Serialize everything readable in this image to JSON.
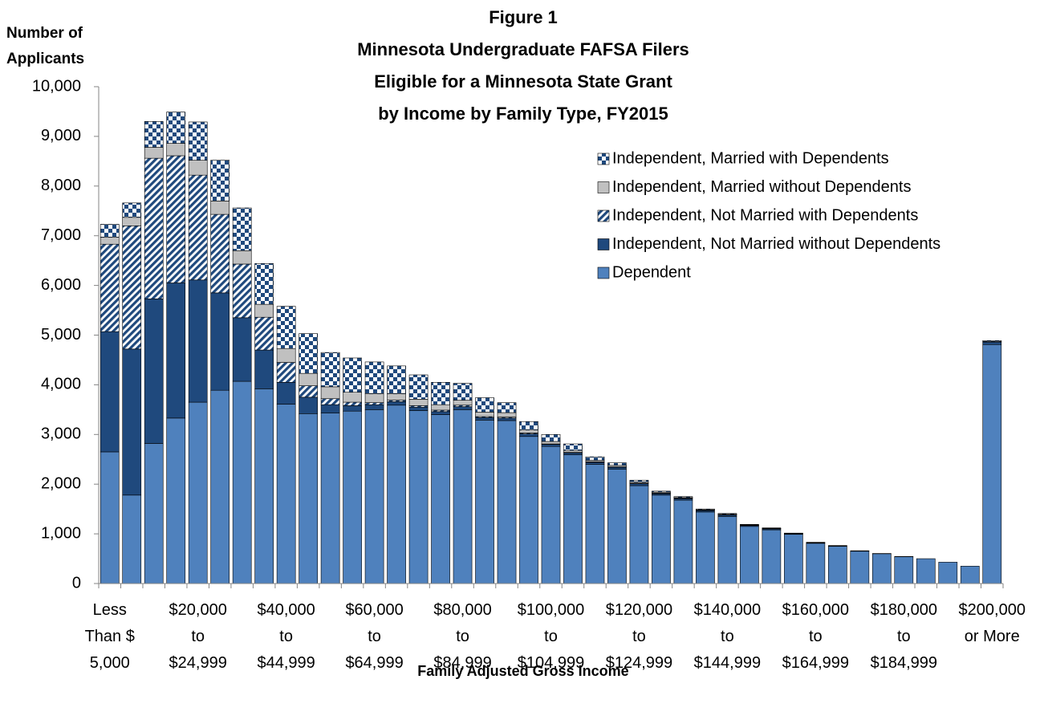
{
  "chart_data": {
    "type": "stacked_bar",
    "title_lines": [
      "Figure 1",
      "Minnesota Undergraduate FAFSA Filers",
      "Eligible for a Minnesota State Grant",
      "by Income by Family Type, FY2015"
    ],
    "ylabel": "Number of\nApplicants",
    "xlabel": "Family Adjusted Gross Income",
    "categories": [
      "Less\nThan $\n5,000",
      null,
      null,
      null,
      "$20,000\nto\n$24,999",
      null,
      null,
      null,
      "$40,000\nto\n$44,999",
      null,
      null,
      null,
      "$60,000\nto\n$64,999",
      null,
      null,
      null,
      "$80,000\nto\n$84,999",
      null,
      null,
      null,
      "$100,000\nto\n$104,999",
      null,
      null,
      null,
      "$120,000\nto\n$124,999",
      null,
      null,
      null,
      "$140,000\nto\n$144,999",
      null,
      null,
      null,
      "$160,000\nto\n$164,999",
      null,
      null,
      null,
      "$180,000\nto\n$184,999",
      null,
      null,
      null,
      "$200,000\nor More"
    ],
    "series": [
      {
        "name": "Dependent",
        "color": "#4f81bd",
        "pattern": "solid",
        "values": [
          2650,
          1780,
          2820,
          3330,
          3650,
          3890,
          4070,
          3920,
          3610,
          3420,
          3430,
          3470,
          3500,
          3590,
          3480,
          3400,
          3500,
          3290,
          3280,
          2960,
          2760,
          2590,
          2400,
          2300,
          1970,
          1780,
          1680,
          1440,
          1350,
          1150,
          1080,
          990,
          810,
          750,
          650,
          600,
          540,
          500,
          430,
          350,
          4810
        ]
      },
      {
        "name": "Independent, Not Married without Dependents",
        "color": "#1f497d",
        "pattern": "solid",
        "values": [
          2420,
          2940,
          2910,
          2720,
          2460,
          1960,
          1280,
          780,
          440,
          330,
          170,
          110,
          100,
          70,
          70,
          60,
          60,
          50,
          50,
          50,
          40,
          40,
          40,
          40,
          40,
          30,
          30,
          30,
          30,
          20,
          20,
          10,
          10,
          10,
          5,
          5,
          5,
          0,
          0,
          0,
          50
        ]
      },
      {
        "name": "Independent, Not Married with Dependents",
        "color": "#1f497d",
        "pattern": "stripes",
        "values": [
          1760,
          2480,
          2830,
          2560,
          2110,
          1580,
          1080,
          660,
          400,
          230,
          120,
          70,
          40,
          30,
          30,
          30,
          30,
          20,
          20,
          20,
          10,
          10,
          10,
          10,
          10,
          10,
          10,
          5,
          5,
          5,
          5,
          5,
          0,
          0,
          0,
          0,
          0,
          0,
          0,
          0,
          0
        ]
      },
      {
        "name": "Independent, Married without Dependents",
        "color": "#c0c0c0",
        "pattern": "solid",
        "values": [
          140,
          170,
          220,
          250,
          300,
          270,
          270,
          260,
          280,
          250,
          240,
          200,
          180,
          130,
          130,
          110,
          100,
          90,
          90,
          60,
          50,
          40,
          30,
          30,
          20,
          20,
          10,
          10,
          10,
          5,
          5,
          5,
          5,
          0,
          0,
          0,
          0,
          0,
          0,
          0,
          10
        ]
      },
      {
        "name": "Independent, Married with Dependents",
        "color": "#1f497d",
        "pattern": "checker",
        "values": [
          260,
          290,
          520,
          630,
          770,
          820,
          860,
          820,
          850,
          800,
          690,
          690,
          640,
          560,
          490,
          450,
          340,
          290,
          200,
          170,
          140,
          130,
          70,
          50,
          40,
          20,
          20,
          15,
          15,
          10,
          10,
          5,
          5,
          5,
          5,
          0,
          0,
          0,
          0,
          0,
          20
        ]
      }
    ],
    "ylim": [
      0,
      10000
    ],
    "yticks": [
      0,
      {
        "value": 1000,
        "label": "1,000"
      },
      {
        "value": 2000,
        "label": "2,000"
      },
      {
        "value": 3000,
        "label": "3,000"
      },
      {
        "value": 4000,
        "label": "4,000"
      },
      {
        "value": 5000,
        "label": "5,000"
      },
      {
        "value": 6000,
        "label": "6,000"
      },
      {
        "value": 7000,
        "label": "7,000"
      },
      {
        "value": 8000,
        "label": "8,000"
      },
      {
        "value": 9000,
        "label": "9,000"
      },
      {
        "value": 10000,
        "label": "10,000"
      }
    ],
    "grid": false,
    "legend_position": "upper right"
  }
}
